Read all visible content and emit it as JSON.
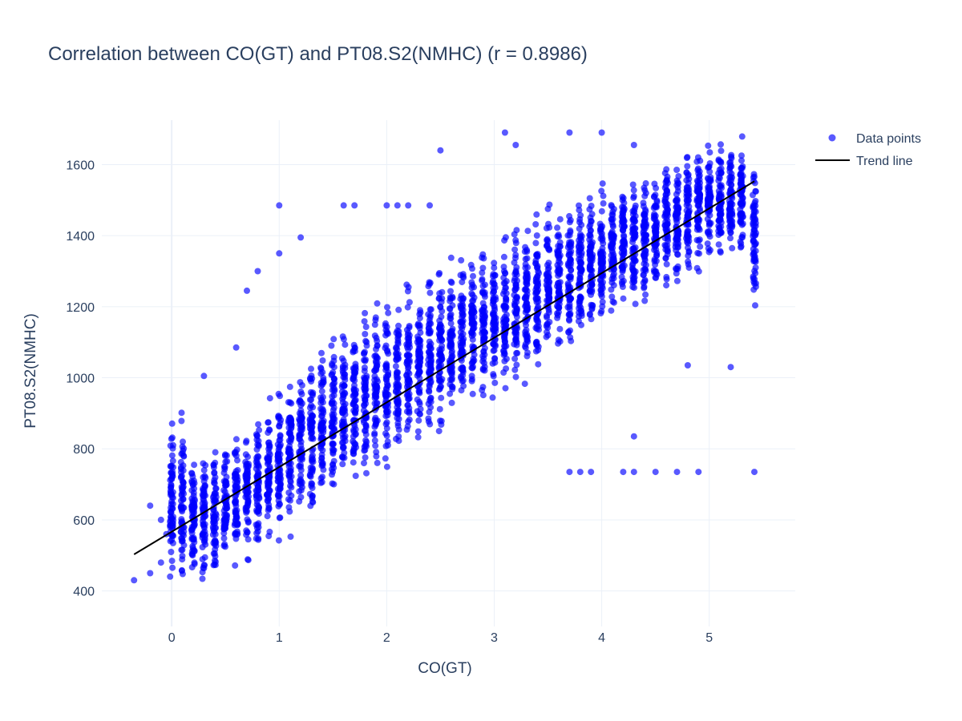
{
  "chart_data": {
    "type": "scatter",
    "title": "Correlation between CO(GT) and PT08.S2(NMHC) (r = 0.8986)",
    "xlabel": "CO(GT)",
    "ylabel": "PT08.S2(NMHC)",
    "xlim": [
      -0.65,
      5.8
    ],
    "ylim": [
      300,
      1725
    ],
    "x_ticks": [
      0,
      1,
      2,
      3,
      4,
      5
    ],
    "y_ticks": [
      400,
      600,
      800,
      1000,
      1200,
      1400,
      1600
    ],
    "grid": true,
    "legend_position": "top-right",
    "series": [
      {
        "name": "Data points",
        "color": "#0000ff",
        "marker": "circle",
        "opacity": 0.65,
        "x_values": [
          0,
          0.1,
          0.2,
          0.3,
          0.4,
          0.5,
          0.6,
          0.7,
          0.8,
          0.9,
          1,
          1.1,
          1.2,
          1.3,
          1.4,
          1.5,
          1.6,
          1.7,
          1.8,
          1.9,
          2,
          2.1,
          2.2,
          2.3,
          2.4,
          2.5,
          2.6,
          2.7,
          2.8,
          2.9,
          3,
          3.1,
          3.2,
          3.3,
          3.4,
          3.5,
          3.6,
          3.7,
          3.8,
          3.9,
          4,
          4.1,
          4.2,
          4.3,
          4.4,
          4.5,
          4.6,
          4.7,
          4.8,
          4.9,
          5,
          5.1,
          5.2,
          5.3,
          5.42
        ],
        "y_low": [
          385,
          385,
          390,
          400,
          415,
          430,
          445,
          460,
          470,
          490,
          520,
          540,
          560,
          580,
          600,
          620,
          640,
          650,
          660,
          690,
          710,
          730,
          750,
          760,
          780,
          800,
          820,
          840,
          860,
          880,
          900,
          920,
          940,
          960,
          980,
          1000,
          1020,
          1040,
          1060,
          1080,
          1100,
          1120,
          1140,
          1160,
          1180,
          1200,
          1220,
          1240,
          1260,
          1280,
          1300,
          1310,
          1320,
          1320,
          1100
        ],
        "y_high": [
          960,
          960,
          820,
          830,
          840,
          860,
          880,
          900,
          940,
          970,
          1000,
          1040,
          1080,
          1120,
          1150,
          1180,
          1200,
          1220,
          1240,
          1250,
          1260,
          1280,
          1300,
          1310,
          1330,
          1350,
          1370,
          1390,
          1410,
          1420,
          1440,
          1460,
          1480,
          1490,
          1500,
          1510,
          1530,
          1540,
          1550,
          1560,
          1580,
          1590,
          1600,
          1610,
          1620,
          1640,
          1650,
          1660,
          1670,
          1680,
          1690,
          1690,
          1695,
          1695,
          1695
        ],
        "extra_points": [
          [
            -0.35,
            430
          ],
          [
            -0.2,
            640
          ],
          [
            -0.2,
            450
          ],
          [
            -0.1,
            600
          ],
          [
            -0.1,
            480
          ],
          [
            -0.05,
            560
          ],
          [
            1,
            1485
          ],
          [
            1.6,
            1485
          ],
          [
            1.7,
            1485
          ],
          [
            2,
            1485
          ],
          [
            2.1,
            1485
          ],
          [
            2.2,
            1485
          ],
          [
            2.4,
            1485
          ],
          [
            2.5,
            1640
          ],
          [
            3.1,
            1690
          ],
          [
            3.2,
            1655
          ],
          [
            3.7,
            1690
          ],
          [
            4,
            1690
          ],
          [
            4.3,
            1655
          ],
          [
            3.7,
            735
          ],
          [
            3.8,
            735
          ],
          [
            3.9,
            735
          ],
          [
            4.2,
            735
          ],
          [
            4.3,
            735
          ],
          [
            4.5,
            735
          ],
          [
            4.7,
            735
          ],
          [
            4.9,
            735
          ],
          [
            5.42,
            735
          ],
          [
            1.2,
            1395
          ],
          [
            1,
            1350
          ],
          [
            0.7,
            1245
          ],
          [
            0.8,
            1300
          ],
          [
            4.3,
            835
          ],
          [
            5.2,
            1030
          ],
          [
            4.8,
            1035
          ],
          [
            0.6,
            1085
          ],
          [
            0.3,
            1005
          ]
        ]
      },
      {
        "name": "Trend line",
        "color": "#000000",
        "x": [
          -0.35,
          5.42
        ],
        "y": [
          503,
          1553
        ]
      }
    ]
  }
}
